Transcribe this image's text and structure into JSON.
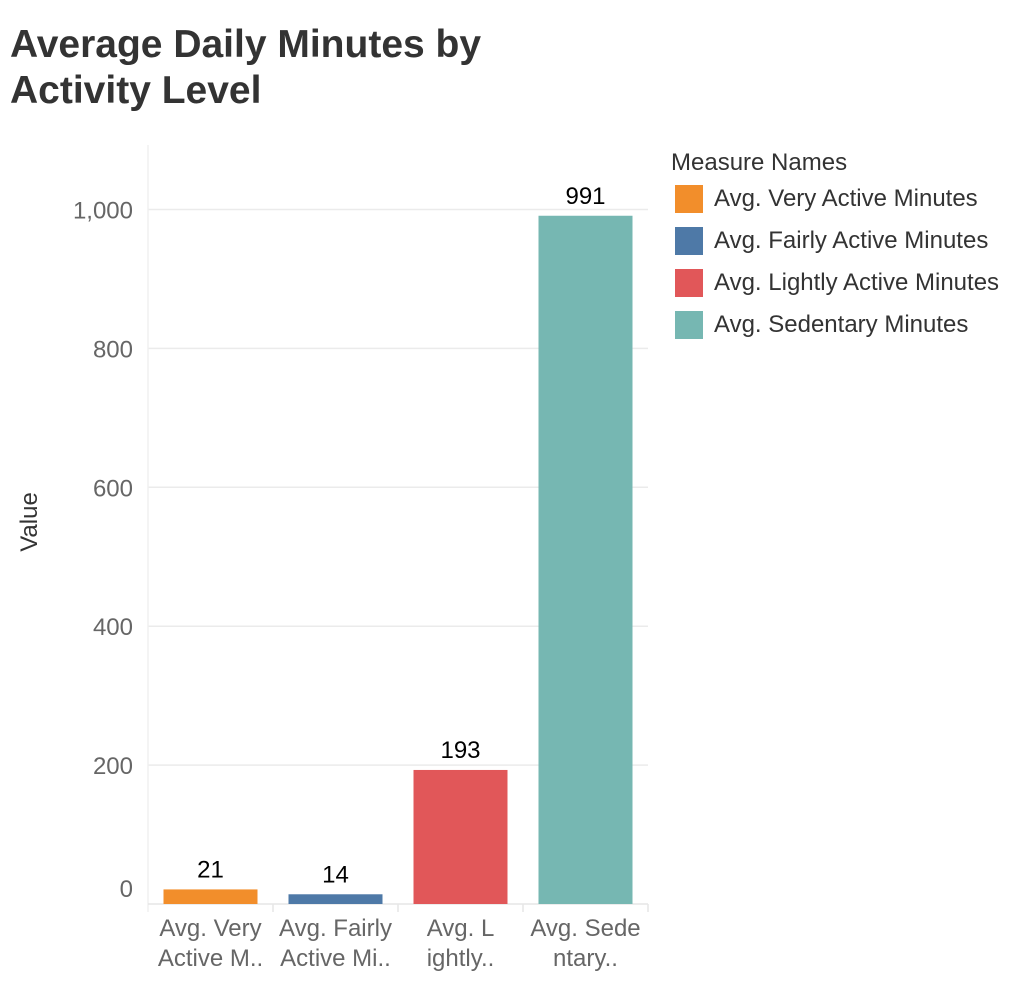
{
  "title": "Average Daily Minutes by Activity Level",
  "legend": {
    "title": "Measure Names",
    "items": [
      {
        "label": "Avg. Very Active Minutes",
        "color": "#f28e2b"
      },
      {
        "label": "Avg. Fairly Active Minutes",
        "color": "#4e79a7"
      },
      {
        "label": "Avg. Lightly Active Minutes",
        "color": "#e15759"
      },
      {
        "label": "Avg. Sedentary Minutes",
        "color": "#76b7b2"
      }
    ]
  },
  "chart_data": {
    "type": "bar",
    "title": "Average Daily Minutes by Activity Level",
    "xlabel": "",
    "ylabel": "Value",
    "ylim": [
      0,
      1100
    ],
    "yticks": [
      0,
      200,
      400,
      600,
      800,
      1000
    ],
    "ytick_labels": [
      "0",
      "200",
      "400",
      "600",
      "800",
      "1,000"
    ],
    "grid": true,
    "legend_position": "right",
    "categories": [
      [
        "Avg. Very",
        "Active M.."
      ],
      [
        "Avg. Fairly",
        "Active Mi.."
      ],
      [
        "Avg. L",
        "ightly.."
      ],
      [
        "Avg. Sede",
        "ntary.."
      ]
    ],
    "values": [
      21,
      14,
      193,
      991
    ],
    "data_labels": [
      "21",
      "14",
      "193",
      "991"
    ],
    "colors": [
      "#f28e2b",
      "#4e79a7",
      "#e15759",
      "#76b7b2"
    ]
  }
}
